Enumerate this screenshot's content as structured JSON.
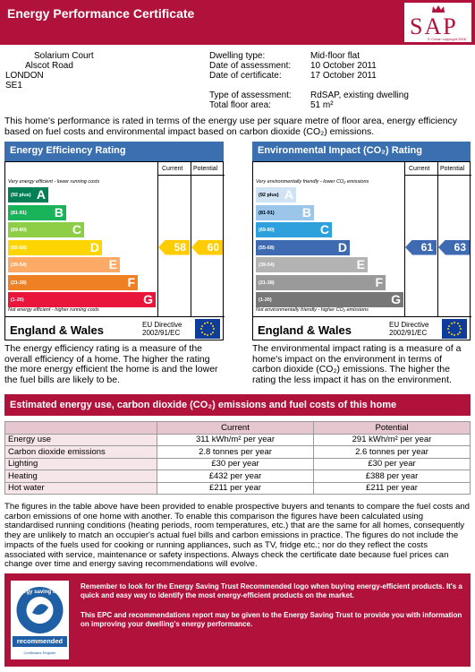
{
  "header": {
    "title": "Energy Performance Certificate",
    "logo_text": "SAP",
    "logo_copyright": "© Crown copyright 2006"
  },
  "address": {
    "line1": "Solarium Court",
    "line2": "Alscot Road",
    "line3": "LONDON",
    "line4": "SE1"
  },
  "details": {
    "dwelling_type_label": "Dwelling type:",
    "dwelling_type": "Mid-floor flat",
    "assessment_date_label": "Date of assessment:",
    "assessment_date": "10 October 2011",
    "certificate_date_label": "Date of certificate:",
    "certificate_date": "17 October 2011",
    "assessment_type_label": "Type of assessment:",
    "assessment_type": "RdSAP, existing dwelling",
    "floor_area_label": "Total floor area:",
    "floor_area": "51 m²"
  },
  "intro": "This home's performance is rated in terms of the energy use per square metre of floor area, energy efficiency based on fuel costs and environmental impact based on carbon dioxide (CO₂) emissions.",
  "efficiency": {
    "title": "Energy Efficiency Rating",
    "current_label": "Current",
    "potential_label": "Potential",
    "top_caption": "Very energy efficient - lower running costs",
    "bottom_caption": "Not energy efficient - higher running costs",
    "current": "58",
    "potential": "60",
    "current_value": 58,
    "potential_value": 60,
    "current_color": "#ffcc00",
    "potential_color": "#ffcc00",
    "bands": [
      {
        "range": "(92 plus)",
        "letter": "A",
        "color": "#008054"
      },
      {
        "range": "(81-91)",
        "letter": "B",
        "color": "#19b459"
      },
      {
        "range": "(69-80)",
        "letter": "C",
        "color": "#8dce46"
      },
      {
        "range": "(55-68)",
        "letter": "D",
        "color": "#ffd500"
      },
      {
        "range": "(39-54)",
        "letter": "E",
        "color": "#fcaa65"
      },
      {
        "range": "(21-38)",
        "letter": "F",
        "color": "#ef8023"
      },
      {
        "range": "(1-20)",
        "letter": "G",
        "color": "#e9153b"
      }
    ],
    "region": "England & Wales",
    "directive": "EU Directive\n2002/91/EC",
    "description": "The energy efficiency rating is a measure of the overall efficiency of a home. The higher the rating the more energy efficient the home is and the lower the fuel bills are likely to be."
  },
  "environment": {
    "title": "Environmental Impact (CO₂) Rating",
    "current_label": "Current",
    "potential_label": "Potential",
    "top_caption": "Very environmentally friendly - lower CO₂ emissions",
    "bottom_caption": "Not environmentally friendly - higher CO₂ emissions",
    "current": "61",
    "potential": "63",
    "current_value": 61,
    "potential_value": 63,
    "current_color": "#3d6ab0",
    "potential_color": "#3d6ab0",
    "bands": [
      {
        "range": "(92 plus)",
        "letter": "A",
        "color": "#cfe3f4"
      },
      {
        "range": "(81-91)",
        "letter": "B",
        "color": "#9cc5ea"
      },
      {
        "range": "(69-80)",
        "letter": "C",
        "color": "#2ea0dc"
      },
      {
        "range": "(55-68)",
        "letter": "D",
        "color": "#3d6ab0"
      },
      {
        "range": "(39-54)",
        "letter": "E",
        "color": "#b3b3b3"
      },
      {
        "range": "(21-38)",
        "letter": "F",
        "color": "#9a9a9a"
      },
      {
        "range": "(1-20)",
        "letter": "G",
        "color": "#777777"
      }
    ],
    "region": "England & Wales",
    "directive": "EU Directive\n2002/91/EC",
    "description": "The environmental impact rating is a measure of a home's impact on the environment in terms of carbon dioxide (CO₂) emissions. The higher the rating the less impact it has on the environment."
  },
  "costs": {
    "title": "Estimated energy use, carbon dioxide (CO₂) emissions and fuel costs of this home",
    "col_current": "Current",
    "col_potential": "Potential",
    "rows": [
      {
        "label": "Energy use",
        "current": "311 kWh/m² per year",
        "potential": "291 kWh/m² per year"
      },
      {
        "label": "Carbon dioxide emissions",
        "current": "2.8 tonnes per year",
        "potential": "2.6 tonnes per year"
      },
      {
        "label": "Lighting",
        "current": "£30 per year",
        "potential": "£30 per year"
      },
      {
        "label": "Heating",
        "current": "£432 per year",
        "potential": "£388 per year"
      },
      {
        "label": "Hot water",
        "current": "£211 per year",
        "potential": "£211 per year"
      }
    ],
    "note": "The figures in the table above have been provided to enable prospective buyers and tenants to compare the fuel costs and carbon emissions of one home with another. To enable this comparison the figures have been calculated using standardised running conditions (heating periods, room temperatures, etc.) that are the same for all homes, consequently they are unlikely to match an occupier's actual fuel bills and carbon emissions in practice. The figures do not include the impacts of the fuels used for cooking or running appliances, such as TV, fridge etc.; nor do they reflect the costs associated with service, maintenance or safety inspections. Always check the certificate date because fuel prices can change over time and energy saving recommendations will evolve."
  },
  "footer": {
    "text1": "Remember to look for the Energy Saving Trust Recommended logo when buying energy-efficient products. It's a quick and easy way to identify the most energy-efficient products on the market.",
    "text2": "This EPC and recommendations report may be given to the Energy Saving Trust to provide you with information on improving your dwelling's energy performance.",
    "logo_top": "energy saving trust",
    "logo_bottom": "recommended",
    "logo_small": "Certificates Register"
  }
}
